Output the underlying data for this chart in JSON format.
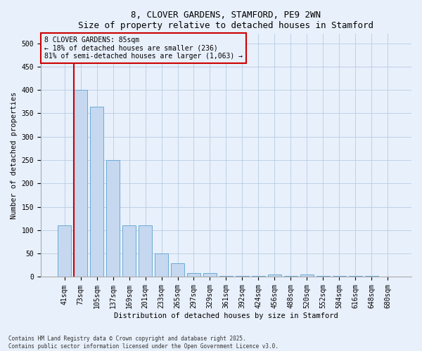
{
  "title": "8, CLOVER GARDENS, STAMFORD, PE9 2WN",
  "subtitle": "Size of property relative to detached houses in Stamford",
  "xlabel": "Distribution of detached houses by size in Stamford",
  "ylabel": "Number of detached properties",
  "categories": [
    "41sqm",
    "73sqm",
    "105sqm",
    "137sqm",
    "169sqm",
    "201sqm",
    "233sqm",
    "265sqm",
    "297sqm",
    "329sqm",
    "361sqm",
    "392sqm",
    "424sqm",
    "456sqm",
    "488sqm",
    "520sqm",
    "552sqm",
    "584sqm",
    "616sqm",
    "648sqm",
    "680sqm"
  ],
  "values": [
    110,
    400,
    365,
    250,
    110,
    110,
    50,
    30,
    8,
    8,
    2,
    2,
    2,
    5,
    2,
    5,
    2,
    2,
    2,
    2,
    1
  ],
  "bar_color": "#c5d8f0",
  "bar_edge_color": "#6aaad4",
  "vline_x_index": 1,
  "vline_color": "#cc0000",
  "annotation_text": "8 CLOVER GARDENS: 85sqm\n← 18% of detached houses are smaller (236)\n81% of semi-detached houses are larger (1,063) →",
  "annotation_box_color": "#cc0000",
  "background_color": "#e8f0fb",
  "footer_text": "Contains HM Land Registry data © Crown copyright and database right 2025.\nContains public sector information licensed under the Open Government Licence v3.0.",
  "ylim": [
    0,
    520
  ],
  "yticks": [
    0,
    50,
    100,
    150,
    200,
    250,
    300,
    350,
    400,
    450,
    500
  ],
  "title_fontsize": 9,
  "axis_label_fontsize": 7.5,
  "tick_fontsize": 7,
  "footer_fontsize": 5.5
}
